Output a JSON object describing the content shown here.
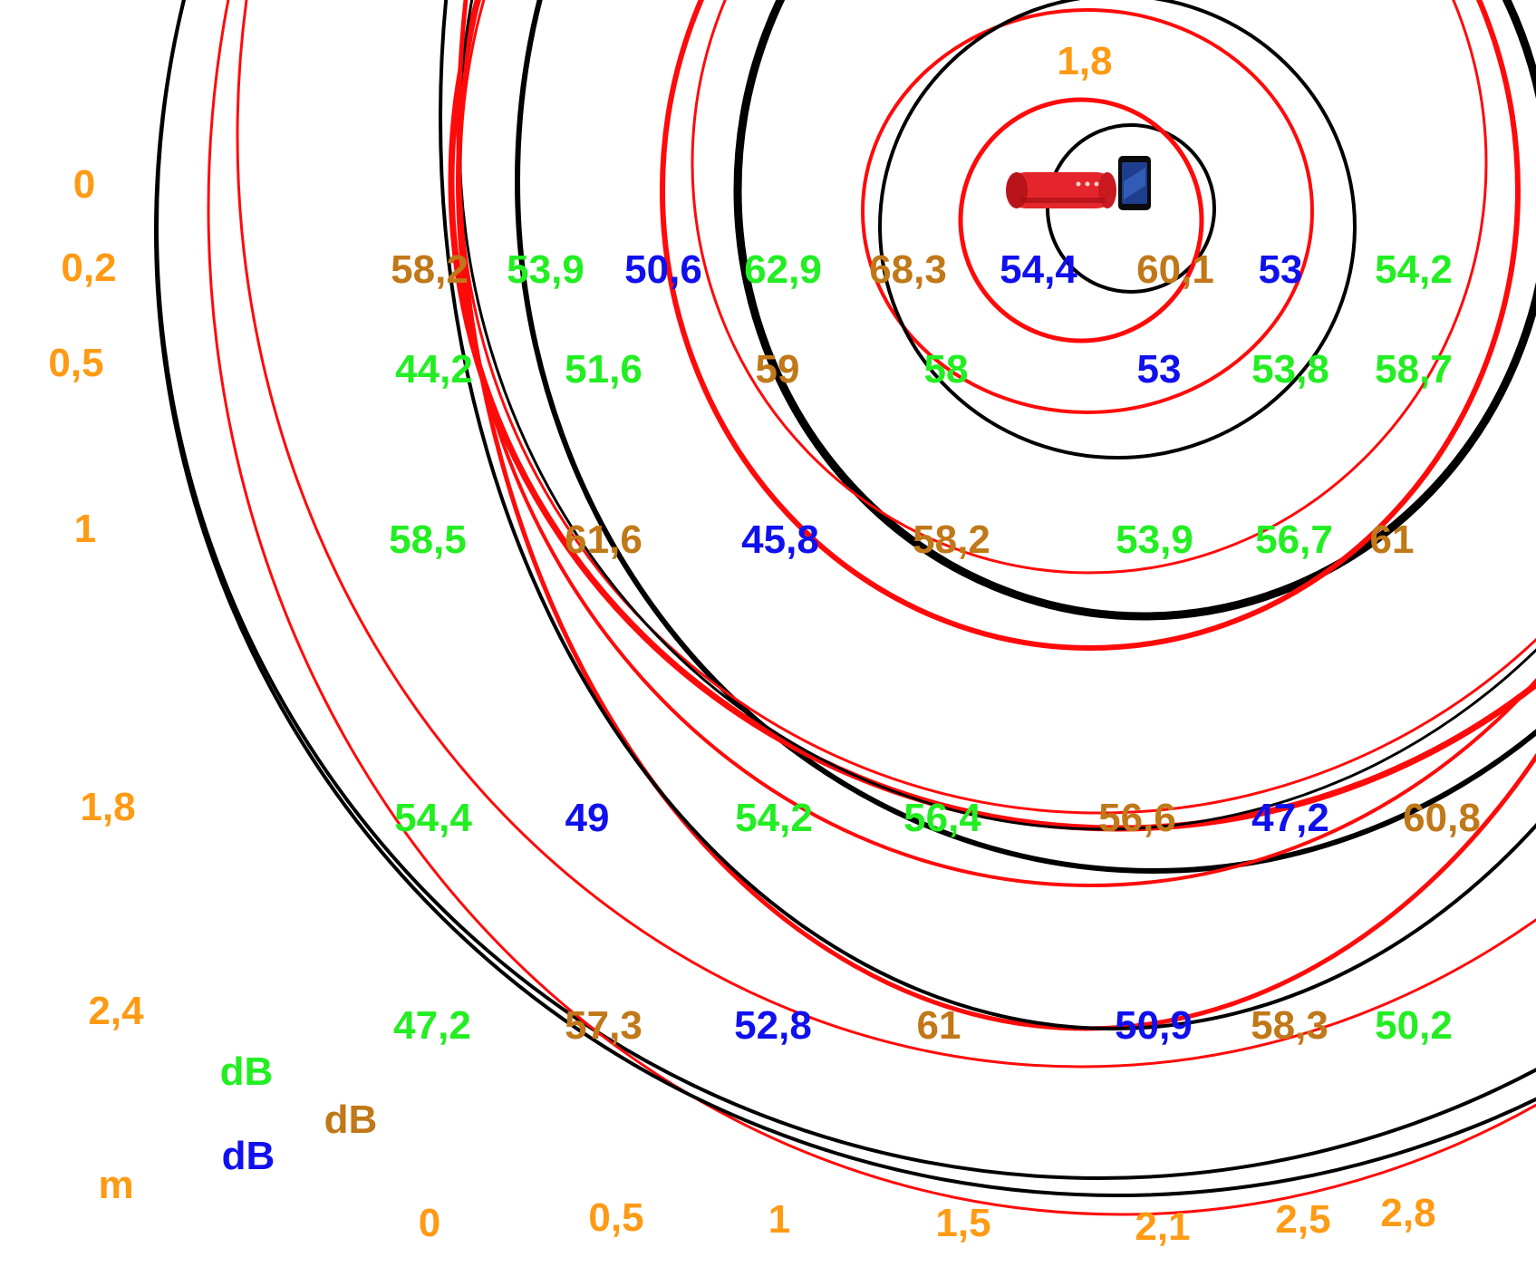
{
  "colors": {
    "green": "#22ee22",
    "brown": "#c07818",
    "blue": "#1010ee",
    "orange": "#ff9a14",
    "ring_red": "#ff0a0a",
    "ring_black": "#000000",
    "speaker": "#e4262c",
    "phone": "#1e3d8c"
  },
  "icons": [
    "speaker-icon",
    "phone-icon"
  ],
  "top_label": "1,8",
  "units": {
    "green": "dB",
    "brown": "dB",
    "blue": "dB",
    "distance": "m"
  },
  "x_axis_labels": [
    "0",
    "0,5",
    "1",
    "1,5",
    "2,1",
    "2,5",
    "2,8"
  ],
  "y_axis_labels": [
    "0",
    "0,2",
    "0,5",
    "1",
    "1,8",
    "2,4"
  ],
  "measurements": [
    {
      "row": "0,2",
      "values": [
        {
          "v": "58,2",
          "c": "brown"
        },
        {
          "v": "53,9",
          "c": "green"
        },
        {
          "v": "50,6",
          "c": "blue"
        },
        {
          "v": "62,9",
          "c": "green"
        },
        {
          "v": "68,3",
          "c": "brown"
        },
        {
          "v": "54,4",
          "c": "blue"
        },
        {
          "v": "60,1",
          "c": "brown"
        },
        {
          "v": "53",
          "c": "blue"
        },
        {
          "v": "54,2",
          "c": "green"
        }
      ]
    },
    {
      "row": "0,5",
      "values": [
        {
          "v": "44,2",
          "c": "green"
        },
        {
          "v": "51,6",
          "c": "green"
        },
        {
          "v": "59",
          "c": "brown"
        },
        {
          "v": "58",
          "c": "green"
        },
        {
          "v": "53",
          "c": "blue"
        },
        {
          "v": "53,8",
          "c": "green"
        },
        {
          "v": "58,7",
          "c": "green"
        }
      ]
    },
    {
      "row": "1",
      "values": [
        {
          "v": "58,5",
          "c": "green"
        },
        {
          "v": "61,6",
          "c": "brown"
        },
        {
          "v": "45,8",
          "c": "blue"
        },
        {
          "v": "58,2",
          "c": "brown"
        },
        {
          "v": "53,9",
          "c": "green"
        },
        {
          "v": "56,7",
          "c": "green"
        },
        {
          "v": "61",
          "c": "brown"
        }
      ]
    },
    {
      "row": "1,8",
      "values": [
        {
          "v": "54,4",
          "c": "green"
        },
        {
          "v": "49",
          "c": "blue"
        },
        {
          "v": "54,2",
          "c": "green"
        },
        {
          "v": "56,4",
          "c": "green"
        },
        {
          "v": "56,6",
          "c": "brown"
        },
        {
          "v": "47,2",
          "c": "blue"
        },
        {
          "v": "60,8",
          "c": "brown"
        }
      ]
    },
    {
      "row": "2,4",
      "values": [
        {
          "v": "47,2",
          "c": "green"
        },
        {
          "v": "57,3",
          "c": "brown"
        },
        {
          "v": "52,8",
          "c": "blue"
        },
        {
          "v": "61",
          "c": "brown"
        },
        {
          "v": "50,9",
          "c": "blue"
        },
        {
          "v": "58,3",
          "c": "brown"
        },
        {
          "v": "50,2",
          "c": "green"
        }
      ]
    }
  ]
}
